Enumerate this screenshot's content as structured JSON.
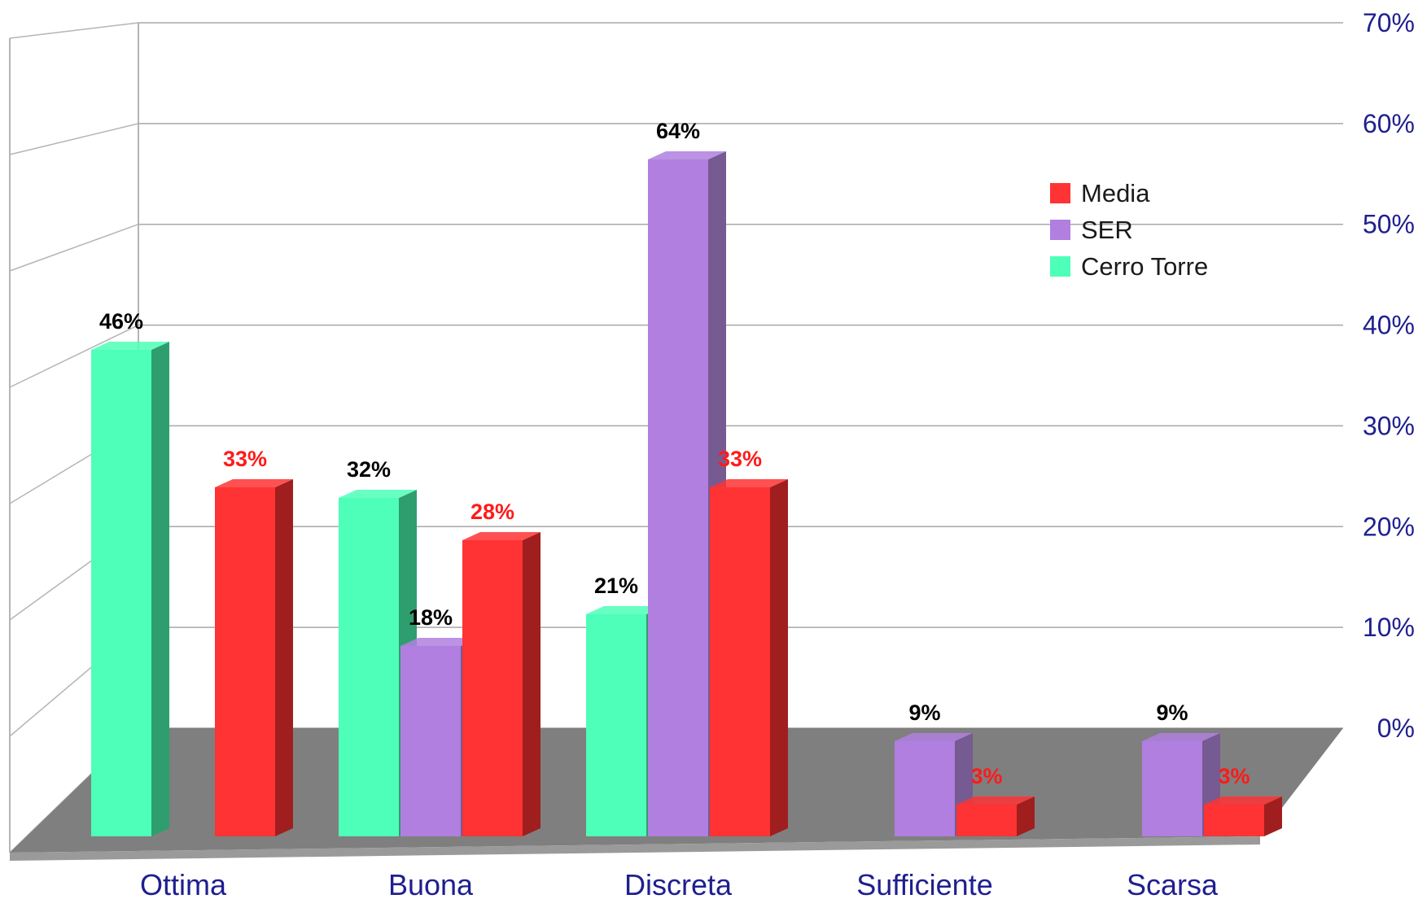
{
  "chart_data": {
    "type": "bar",
    "title": "",
    "xlabel": "",
    "ylabel": "",
    "categories": [
      "Ottima",
      "Buona",
      "Discreta",
      "Sufficiente",
      "Scarsa"
    ],
    "ylim": [
      0,
      70
    ],
    "yticks": [
      "0%",
      "10%",
      "20%",
      "30%",
      "40%",
      "50%",
      "60%",
      "70%"
    ],
    "grid": true,
    "legend_position": "right",
    "series": [
      {
        "name": "Cerro Torre",
        "color": "#4dffb8",
        "side_color": "#2e9e6e",
        "label_color": "#000000",
        "values": [
          46,
          32,
          21,
          null,
          null
        ],
        "labels": [
          "46%",
          "32%",
          "21%",
          "",
          ""
        ]
      },
      {
        "name": "SER",
        "color": "#b07fdf",
        "side_color": "#765a92",
        "label_color": "#000000",
        "values": [
          null,
          18,
          64,
          9,
          9
        ],
        "labels": [
          "",
          "18%",
          "64%",
          "9%",
          "9%"
        ]
      },
      {
        "name": "Media",
        "color": "#ff3333",
        "side_color": "#a01e1e",
        "label_color": "#ff1a1a",
        "values": [
          33,
          28,
          33,
          3,
          3
        ],
        "labels": [
          "33%",
          "28%",
          "33%",
          "3%",
          "3%"
        ]
      }
    ],
    "legend_order": [
      "Media",
      "SER",
      "Cerro Torre"
    ]
  }
}
